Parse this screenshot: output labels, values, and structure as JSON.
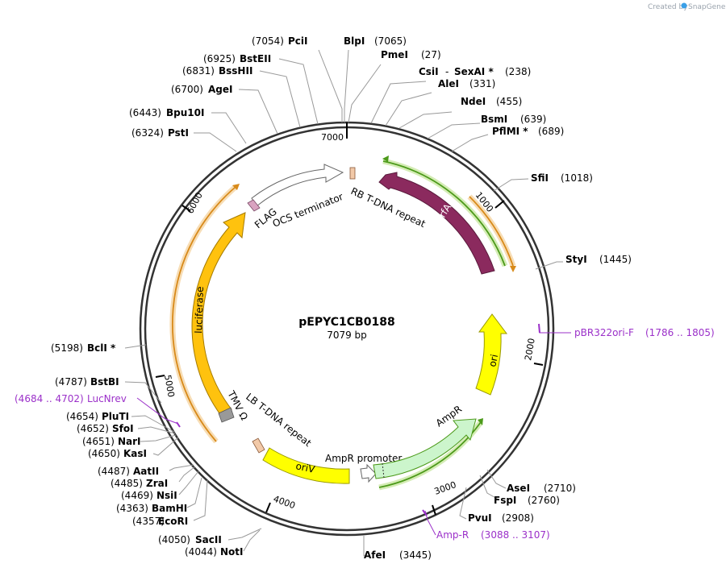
{
  "credit": {
    "prefix": "Created by",
    "brand": "SnapGene"
  },
  "plasmid": {
    "name": "pEPYC1CB0188",
    "length": "7079 bp"
  },
  "ticks": [
    "1000",
    "2000",
    "3000",
    "4000",
    "5000",
    "6000",
    "7000"
  ],
  "sites": [
    {
      "name": "PciI",
      "pos": "(7054)"
    },
    {
      "name": "BlpI",
      "pos": "(7065)"
    },
    {
      "name": "PmeI",
      "pos": "(27)"
    },
    {
      "name": "CsiI",
      "pos": "(238)"
    },
    {
      "name": "SexAI *",
      "pos": "(238)"
    },
    {
      "name": "AleI",
      "pos": "(331)"
    },
    {
      "name": "NdeI",
      "pos": "(455)"
    },
    {
      "name": "BsmI",
      "pos": "(639)"
    },
    {
      "name": "PflMI *",
      "pos": "(689)"
    },
    {
      "name": "SfiI",
      "pos": "(1018)"
    },
    {
      "name": "StyI",
      "pos": "(1445)"
    },
    {
      "name": "AseI",
      "pos": "(2710)"
    },
    {
      "name": "FspI",
      "pos": "(2760)"
    },
    {
      "name": "PvuI",
      "pos": "(2908)"
    },
    {
      "name": "AfeI",
      "pos": "(3445)"
    },
    {
      "name": "NotI",
      "pos": "(4044)"
    },
    {
      "name": "SacII",
      "pos": "(4050)"
    },
    {
      "name": "EcoRI",
      "pos": "(4357)"
    },
    {
      "name": "BamHI",
      "pos": "(4363)"
    },
    {
      "name": "NsiI",
      "pos": "(4469)"
    },
    {
      "name": "ZraI",
      "pos": "(4485)"
    },
    {
      "name": "AatII",
      "pos": "(4487)"
    },
    {
      "name": "KasI",
      "pos": "(4650)"
    },
    {
      "name": "NarI",
      "pos": "(4651)"
    },
    {
      "name": "SfoI",
      "pos": "(4652)"
    },
    {
      "name": "PluTI",
      "pos": "(4654)"
    },
    {
      "name": "BstBI",
      "pos": "(4787)"
    },
    {
      "name": "BclI *",
      "pos": "(5198)"
    },
    {
      "name": "PstI",
      "pos": "(6324)"
    },
    {
      "name": "Bpu10I",
      "pos": "(6443)"
    },
    {
      "name": "AgeI",
      "pos": "(6700)"
    },
    {
      "name": "BssHII",
      "pos": "(6831)"
    },
    {
      "name": "BstEII",
      "pos": "(6925)"
    }
  ],
  "primers": [
    {
      "name": "pBR322ori-F",
      "range": "(1786 .. 1805)"
    },
    {
      "name": "Amp-R",
      "range": "(3088 .. 3107)"
    },
    {
      "name": "LucNrev",
      "range": "(4684 .. 4702)"
    }
  ],
  "features": [
    {
      "name": "trfA",
      "color": "#8b2a5e"
    },
    {
      "name": "RB T-DNA repeat",
      "color": "#f2c9a8"
    },
    {
      "name": "OCS terminator",
      "color": "#ffffff"
    },
    {
      "name": "FLAG",
      "color": "#d9a3c0"
    },
    {
      "name": "luciferase",
      "color": "#ffc20e"
    },
    {
      "name": "TMV Ω",
      "color": "#999999"
    },
    {
      "name": "LB T-DNA repeat",
      "color": "#f2c9a8"
    },
    {
      "name": "oriV",
      "color": "#ffff00"
    },
    {
      "name": "AmpR promoter",
      "color": "#ffffff"
    },
    {
      "name": "AmpR",
      "color": "#ccf5cc"
    },
    {
      "name": "ori",
      "color": "#ffff00"
    }
  ]
}
